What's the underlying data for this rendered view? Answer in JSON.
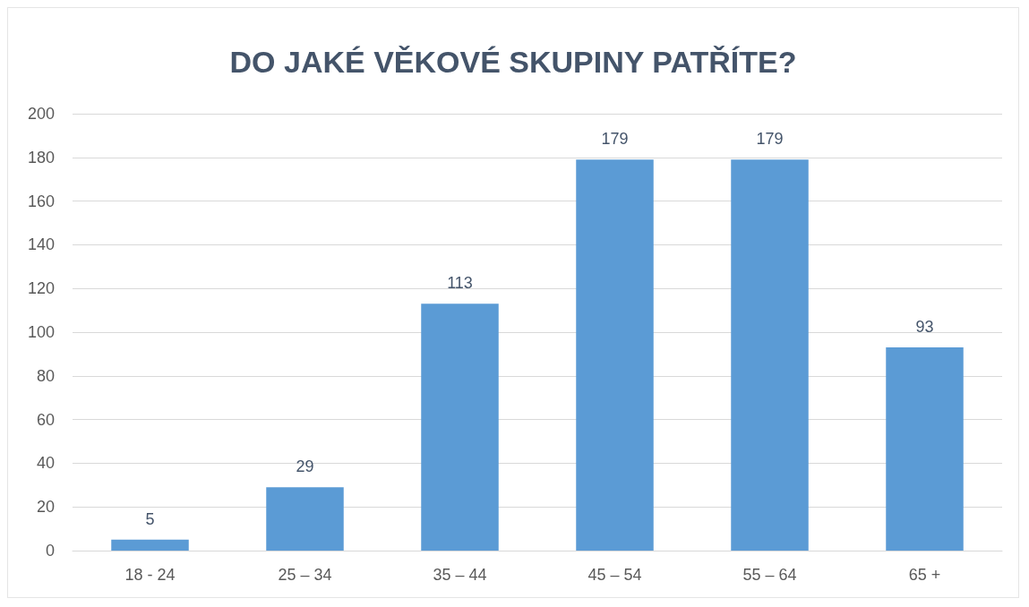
{
  "chart_data": {
    "type": "bar",
    "title": "DO JAKÉ VĚKOVÉ SKUPINY PATŘÍTE?",
    "categories": [
      "18 - 24",
      "25 – 34",
      "35 – 44",
      "45 – 54",
      "55 – 64",
      "65 +"
    ],
    "values": [
      5,
      29,
      113,
      179,
      179,
      93
    ],
    "color": "#5b9bd5",
    "ylim": [
      0,
      200
    ],
    "yticks": [
      0,
      20,
      40,
      60,
      80,
      100,
      120,
      140,
      160,
      180,
      200
    ],
    "grid": "y",
    "data_labels": true
  }
}
